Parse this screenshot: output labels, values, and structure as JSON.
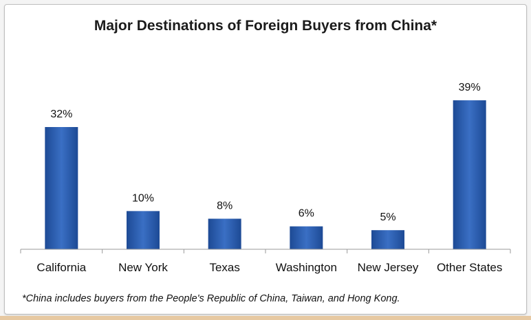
{
  "chart_data": {
    "type": "bar",
    "title": "Major Destinations of Foreign Buyers from China*",
    "categories": [
      "California",
      "New York",
      "Texas",
      "Washington",
      "New Jersey",
      "Other States"
    ],
    "values": [
      32,
      10,
      8,
      6,
      5,
      39
    ],
    "data_labels": [
      "32%",
      "10%",
      "8%",
      "6%",
      "5%",
      "39%"
    ],
    "unit": "%",
    "ylim": [
      0,
      45
    ],
    "grid": false,
    "legend": "none",
    "bar_color": "#2a5aa8",
    "footnote": "*China includes buyers from the People's Republic of China, Taiwan, and Hong Kong."
  }
}
